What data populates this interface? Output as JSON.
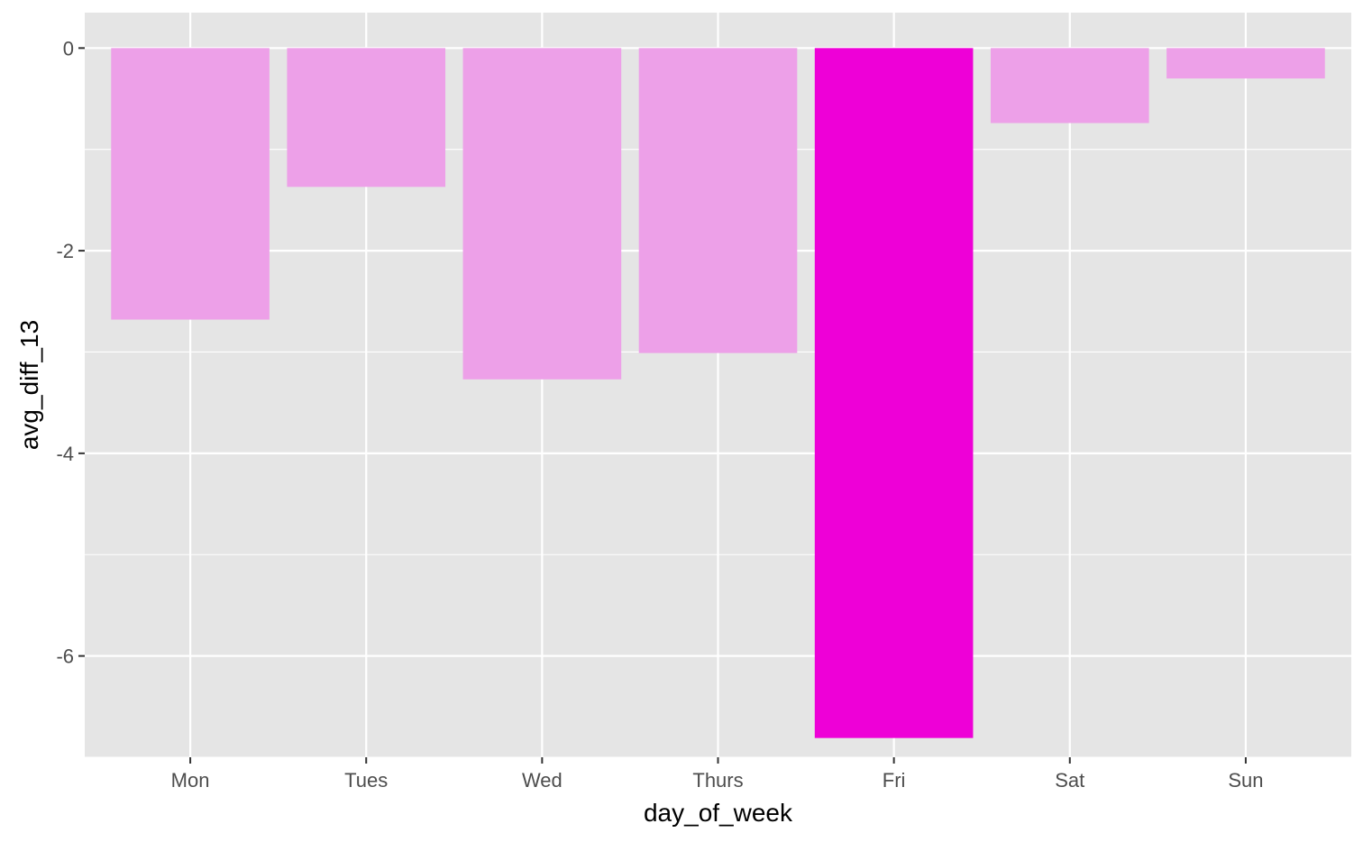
{
  "chart_data": {
    "type": "bar",
    "title": "",
    "xlabel": "day_of_week",
    "ylabel": "avg_diff_13",
    "categories": [
      "Mon",
      "Tues",
      "Wed",
      "Thurs",
      "Fri",
      "Sat",
      "Sun"
    ],
    "values": [
      -2.68,
      -1.37,
      -3.27,
      -3.01,
      -6.81,
      -0.74,
      -0.3
    ],
    "highlight_index": 4,
    "ylim": [
      -7.0,
      0.35
    ],
    "yticks": [
      0,
      -2,
      -4,
      -6
    ],
    "ytick_labels": [
      "0",
      "-2",
      "-4",
      "-6"
    ],
    "grid": true,
    "legend": "none",
    "colors": {
      "panel_background": "#e5e5e5",
      "grid": "#ffffff",
      "bar": "#eda0e8",
      "bar_highlight": "#ee00d7"
    }
  }
}
